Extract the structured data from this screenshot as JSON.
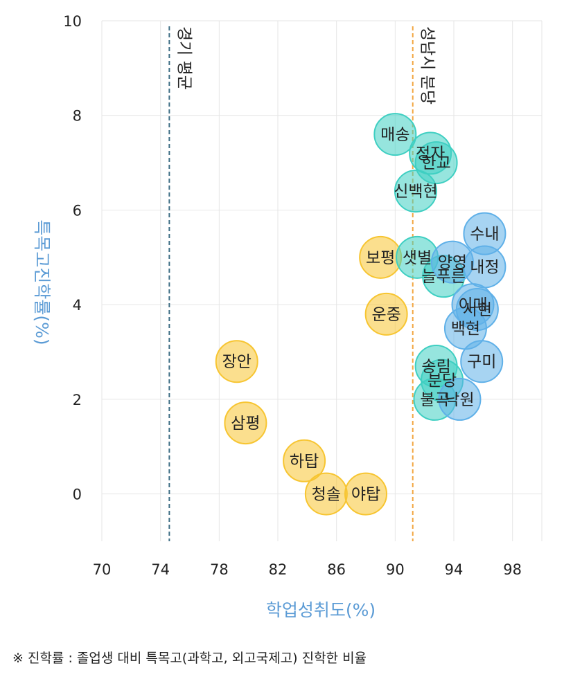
{
  "chart_data": {
    "type": "scatter",
    "title": "",
    "xlabel": "학업성취도(%)",
    "ylabel": "특목고진학률(%)",
    "xlim": [
      70,
      100
    ],
    "ylim": [
      -1,
      10
    ],
    "x_ticks": [
      70,
      74,
      78,
      82,
      86,
      90,
      94,
      98
    ],
    "y_ticks": [
      0,
      2,
      4,
      6,
      8,
      10
    ],
    "grid": true,
    "reference_lines": [
      {
        "label": "경기 평균",
        "x": 74.6,
        "color": "#3f6e85"
      },
      {
        "label": "성남시 분당",
        "x": 91.2,
        "color": "#f2a641"
      }
    ],
    "series": [
      {
        "color": "#f7c531",
        "points": [
          {
            "label": "장안",
            "x": 79.2,
            "y": 2.8
          },
          {
            "label": "삼평",
            "x": 79.8,
            "y": 1.5
          },
          {
            "label": "하탑",
            "x": 83.8,
            "y": 0.7
          },
          {
            "label": "청솔",
            "x": 85.3,
            "y": 0.0
          },
          {
            "label": "야탑",
            "x": 88.0,
            "y": 0.0
          },
          {
            "label": "보평",
            "x": 89.0,
            "y": 5.0
          },
          {
            "label": "운중",
            "x": 89.4,
            "y": 3.8
          }
        ]
      },
      {
        "color": "#3fcfc2",
        "points": [
          {
            "label": "매송",
            "x": 90.0,
            "y": 7.6
          },
          {
            "label": "정자",
            "x": 92.4,
            "y": 7.2
          },
          {
            "label": "한교",
            "x": 92.8,
            "y": 7.0
          },
          {
            "label": "신백현",
            "x": 91.4,
            "y": 6.4
          },
          {
            "label": "샛별",
            "x": 91.5,
            "y": 5.0
          },
          {
            "label": "늘푸른",
            "x": 93.3,
            "y": 4.6
          },
          {
            "label": "송림",
            "x": 92.8,
            "y": 2.7
          },
          {
            "label": "분당",
            "x": 93.2,
            "y": 2.4
          },
          {
            "label": "불곡",
            "x": 92.7,
            "y": 2.0
          }
        ]
      },
      {
        "color": "#5fb0e8",
        "points": [
          {
            "label": "수내",
            "x": 96.1,
            "y": 5.5
          },
          {
            "label": "양영",
            "x": 93.9,
            "y": 4.9
          },
          {
            "label": "내정",
            "x": 96.1,
            "y": 4.8
          },
          {
            "label": "서현",
            "x": 95.6,
            "y": 3.9
          },
          {
            "label": "이매",
            "x": 95.3,
            "y": 4.0
          },
          {
            "label": "백현",
            "x": 94.8,
            "y": 3.5
          },
          {
            "label": "구미",
            "x": 95.9,
            "y": 2.8
          },
          {
            "label": "낙원",
            "x": 94.4,
            "y": 2.0
          }
        ]
      }
    ]
  },
  "footnote": "※ 진학률 : 졸업생 대비 특목고(과학고, 외고국제고) 진학한 비율"
}
